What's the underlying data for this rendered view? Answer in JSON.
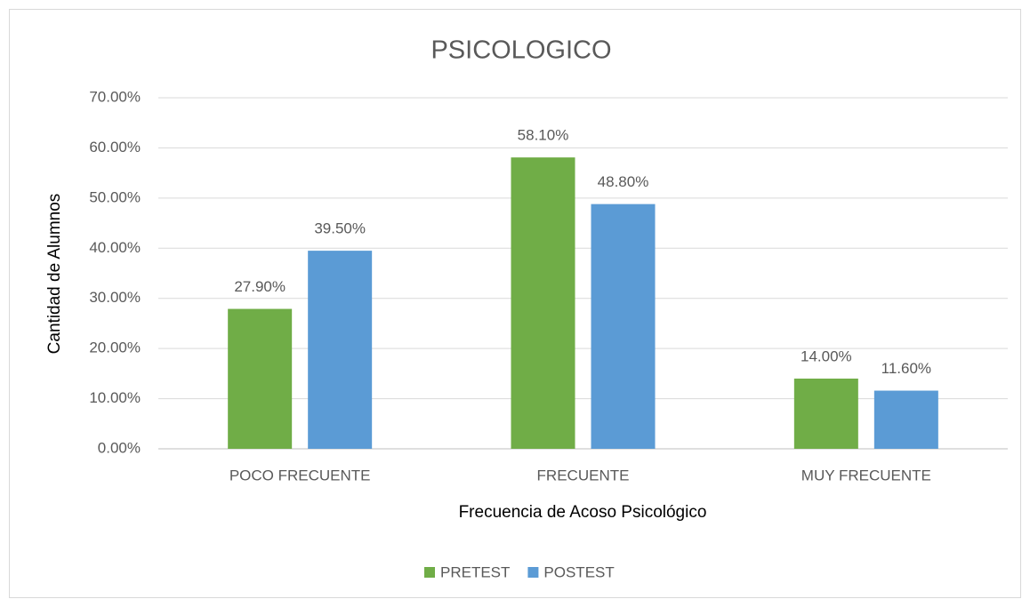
{
  "chart_data": {
    "type": "bar",
    "title": "PSICOLOGICO",
    "x_label": "Frecuencia de Acoso Psicológico",
    "y_label": "Cantidad de Alumnos",
    "categories": [
      "POCO FRECUENTE",
      "FRECUENTE",
      "MUY FRECUENTE"
    ],
    "series": [
      {
        "name": "PRETEST",
        "color": "#70ad47",
        "values": [
          27.9,
          58.1,
          14.0
        ],
        "value_labels": [
          "27.90%",
          "58.10%",
          "14.00%"
        ]
      },
      {
        "name": "POSTEST",
        "color": "#5b9bd5",
        "values": [
          39.5,
          48.8,
          11.6
        ],
        "value_labels": [
          "39.50%",
          "48.80%",
          "11.60%"
        ]
      }
    ],
    "ylim": [
      0,
      70
    ],
    "yticks": [
      {
        "value": 0,
        "label": "0.00%"
      },
      {
        "value": 10,
        "label": "10.00%"
      },
      {
        "value": 20,
        "label": "20.00%"
      },
      {
        "value": 30,
        "label": "30.00%"
      },
      {
        "value": 40,
        "label": "40.00%"
      },
      {
        "value": 50,
        "label": "50.00%"
      },
      {
        "value": 60,
        "label": "60.00%"
      },
      {
        "value": 70,
        "label": "70.00%"
      }
    ],
    "grid": true,
    "legend": "bottom"
  }
}
